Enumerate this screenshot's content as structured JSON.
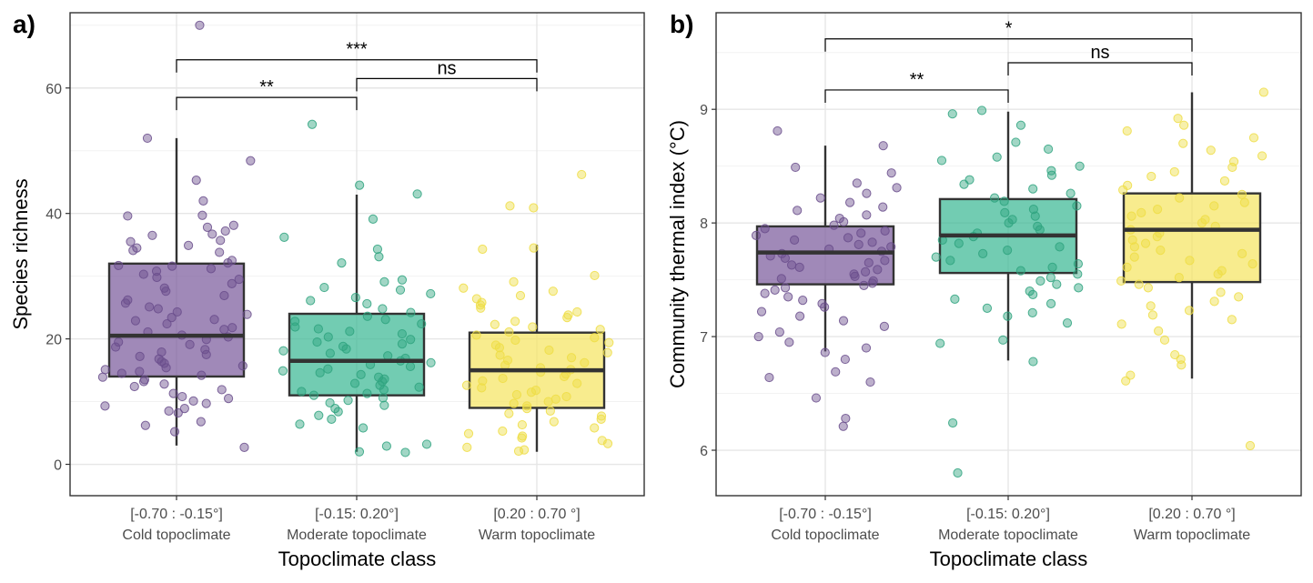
{
  "colors": {
    "cold": "#7b5c9c",
    "moderate": "#3bb894",
    "warm": "#f5e562",
    "cold_point": "#6a4d8c",
    "moderate_point": "#2fa37f",
    "warm_point": "#eedd45",
    "grid_major": "#e6e6e6",
    "grid_minor": "#f2f2f2",
    "border": "#333333"
  },
  "chart_data": [
    {
      "panel": "a)",
      "type": "box",
      "xlabel": "Topoclimate class",
      "ylabel": "Species richness",
      "ylim": [
        -5,
        72
      ],
      "y_ticks": [
        0,
        20,
        40,
        60
      ],
      "grid": true,
      "categories": [
        {
          "range": "[-0.70 : -0.15°]",
          "name": "Cold topoclimate"
        },
        {
          "range": "[-0.15: 0.20°]",
          "name": "Moderate topoclimate"
        },
        {
          "range": "[0.20 : 0.70 °]",
          "name": "Warm topoclimate"
        }
      ],
      "boxes": [
        {
          "q1": 14,
          "median": 20.5,
          "q3": 32,
          "whisker_low": 3,
          "whisker_high": 52
        },
        {
          "q1": 11,
          "median": 16.5,
          "q3": 24,
          "whisker_low": 2,
          "whisker_high": 43
        },
        {
          "q1": 9,
          "median": 15,
          "q3": 21,
          "whisker_low": 2,
          "whisker_high": 35
        }
      ],
      "points": [
        [
          70,
          52,
          45.3,
          48.4,
          42,
          39.7,
          39.6,
          38.1,
          37.8,
          37.2,
          36.7,
          36.5,
          35.7,
          35.5,
          34.9,
          34.5,
          34.1,
          33.8,
          32.5,
          32.1,
          31.7,
          31.6,
          31.2,
          30.8,
          30.3,
          29.8,
          29.5,
          28.8,
          28.1,
          27.6,
          26.9,
          26.2,
          25.7,
          25.1,
          24.8,
          24.3,
          23.9,
          23.4,
          23.1,
          22.9,
          22.4,
          21.8,
          21.5,
          21.1,
          20.6,
          20.3,
          19.9,
          19.5,
          19.1,
          18.7,
          18.3,
          17.9,
          17.5,
          17.2,
          16.8,
          16.4,
          16.1,
          15.7,
          15.4,
          15.1,
          14.8,
          14.5,
          14.2,
          13.9,
          13.5,
          13.2,
          12.8,
          12.4,
          11.9,
          11.3,
          10.8,
          10.5,
          10.1,
          9.7,
          9.3,
          8.9,
          8.5,
          8.2,
          6.8,
          6.2,
          5.2,
          2.7
        ],
        [
          54.2,
          44.5,
          43.1,
          39.1,
          36.2,
          34.3,
          33.1,
          32.1,
          29.4,
          29.1,
          28.2,
          27.8,
          27.2,
          26.6,
          26.1,
          25.6,
          24.8,
          24.2,
          23.6,
          23.1,
          22.8,
          22.4,
          21.9,
          21.6,
          21.2,
          20.8,
          20.3,
          19.9,
          19.5,
          19.2,
          18.8,
          18.4,
          18.1,
          17.7,
          17.3,
          16.9,
          16.5,
          16.2,
          15.9,
          15.6,
          15.2,
          14.9,
          14.6,
          14.3,
          13.9,
          13.6,
          13.2,
          12.9,
          12.6,
          12.3,
          11.9,
          11.6,
          11.3,
          11.0,
          10.6,
          10.2,
          9.8,
          9.4,
          8.9,
          8.4,
          7.8,
          7.2,
          6.4,
          5.8,
          3.2,
          2.9,
          2.0,
          1.9
        ],
        [
          46.2,
          41.2,
          40.9,
          34.5,
          34.3,
          30.1,
          29.1,
          28.1,
          27.6,
          26.9,
          26.4,
          25.8,
          25.4,
          24.9,
          24.3,
          23.8,
          23.4,
          22.8,
          22.3,
          21.9,
          21.5,
          21.1,
          20.6,
          20.2,
          19.8,
          19.4,
          19.0,
          18.6,
          18.2,
          17.8,
          17.4,
          17.0,
          16.6,
          16.2,
          15.8,
          15.4,
          15.1,
          14.7,
          14.4,
          14.0,
          13.7,
          13.3,
          12.9,
          12.6,
          12.2,
          11.8,
          11.5,
          11.1,
          10.8,
          10.4,
          10.0,
          9.7,
          9.3,
          8.9,
          8.5,
          8.1,
          7.7,
          7.2,
          6.8,
          6.3,
          5.8,
          5.3,
          4.9,
          4.5,
          4.2,
          3.8,
          3.3,
          2.7,
          2.3,
          2.1
        ]
      ],
      "comparisons": [
        {
          "from": 0,
          "to": 1,
          "label": "**",
          "y": 58.5
        },
        {
          "from": 0,
          "to": 2,
          "label": "***",
          "y": 64.5
        },
        {
          "from": 1,
          "to": 2,
          "label": "ns",
          "y": 61.5
        }
      ]
    },
    {
      "panel": "b)",
      "type": "box",
      "xlabel": "Topoclimate class",
      "ylabel": "Community thermal index (°C)",
      "ylim": [
        5.6,
        9.85
      ],
      "y_ticks": [
        6,
        7,
        8,
        9
      ],
      "grid": true,
      "categories": [
        {
          "range": "[-0.70 : -0.15°]",
          "name": "Cold topoclimate"
        },
        {
          "range": "[-0.15: 0.20°]",
          "name": "Moderate topoclimate"
        },
        {
          "range": "[0.20 : 0.70 °]",
          "name": "Warm topoclimate"
        }
      ],
      "boxes": [
        {
          "q1": 7.46,
          "median": 7.74,
          "q3": 7.97,
          "whisker_low": 6.87,
          "whisker_high": 8.68
        },
        {
          "q1": 7.56,
          "median": 7.89,
          "q3": 8.21,
          "whisker_low": 6.79,
          "whisker_high": 8.98
        },
        {
          "q1": 7.48,
          "median": 7.94,
          "q3": 8.26,
          "whisker_low": 6.63,
          "whisker_high": 9.15
        }
      ],
      "points": [
        [
          8.81,
          8.68,
          8.49,
          8.44,
          8.35,
          8.31,
          8.26,
          8.22,
          8.18,
          8.14,
          8.11,
          8.07,
          8.04,
          8.01,
          7.98,
          7.95,
          7.93,
          7.91,
          7.89,
          7.87,
          7.85,
          7.83,
          7.81,
          7.79,
          7.77,
          7.75,
          7.73,
          7.71,
          7.69,
          7.67,
          7.65,
          7.63,
          7.61,
          7.59,
          7.57,
          7.55,
          7.53,
          7.51,
          7.49,
          7.47,
          7.45,
          7.43,
          7.41,
          7.38,
          7.35,
          7.32,
          7.29,
          7.26,
          7.22,
          7.18,
          7.14,
          7.09,
          7.04,
          7.0,
          6.95,
          6.9,
          6.86,
          6.8,
          6.69,
          6.64,
          6.6,
          6.46,
          6.28,
          6.21
        ],
        [
          8.99,
          8.96,
          8.86,
          8.71,
          8.65,
          8.58,
          8.55,
          8.5,
          8.46,
          8.42,
          8.38,
          8.34,
          8.3,
          8.26,
          8.22,
          8.19,
          8.15,
          8.12,
          8.09,
          8.06,
          8.03,
          8.0,
          7.97,
          7.94,
          7.91,
          7.88,
          7.85,
          7.82,
          7.79,
          7.76,
          7.73,
          7.7,
          7.67,
          7.64,
          7.61,
          7.58,
          7.55,
          7.52,
          7.49,
          7.46,
          7.43,
          7.4,
          7.37,
          7.33,
          7.29,
          7.25,
          7.21,
          7.18,
          7.12,
          6.97,
          6.94,
          6.78,
          6.24,
          5.8
        ],
        [
          9.15,
          8.92,
          8.86,
          8.81,
          8.75,
          8.7,
          8.64,
          8.59,
          8.54,
          8.49,
          8.45,
          8.41,
          8.37,
          8.33,
          8.29,
          8.25,
          8.22,
          8.18,
          8.15,
          8.12,
          8.09,
          8.06,
          8.03,
          8.0,
          7.97,
          7.94,
          7.91,
          7.88,
          7.85,
          7.82,
          7.79,
          7.76,
          7.73,
          7.7,
          7.67,
          7.64,
          7.61,
          7.58,
          7.55,
          7.52,
          7.49,
          7.46,
          7.43,
          7.39,
          7.35,
          7.31,
          7.27,
          7.23,
          7.19,
          7.15,
          7.11,
          7.05,
          6.97,
          6.84,
          6.8,
          6.75,
          6.66,
          6.61,
          6.04
        ]
      ],
      "comparisons": [
        {
          "from": 0,
          "to": 1,
          "label": "**",
          "y": 9.17
        },
        {
          "from": 0,
          "to": 2,
          "label": "*",
          "y": 9.62
        },
        {
          "from": 1,
          "to": 2,
          "label": "ns",
          "y": 9.41
        }
      ]
    }
  ]
}
